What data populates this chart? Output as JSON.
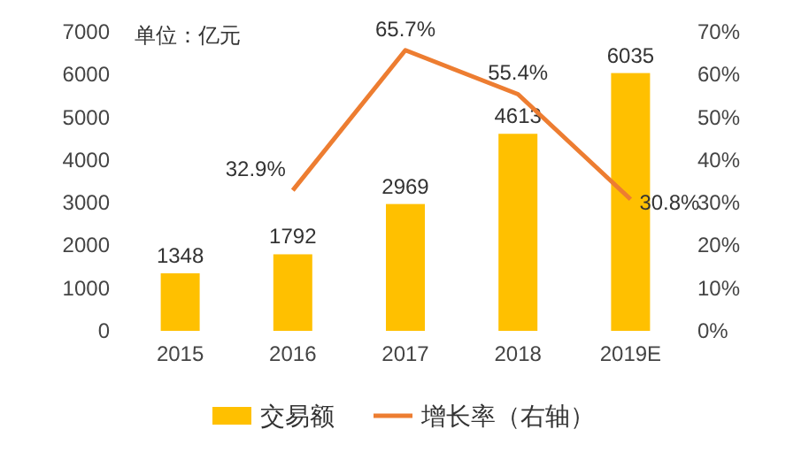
{
  "chart_data": {
    "type": "bar",
    "categories": [
      "2015",
      "2016",
      "2017",
      "2018",
      "2019E"
    ],
    "series": [
      {
        "name": "交易额",
        "color": "#ffc000",
        "values": [
          1348,
          1792,
          2969,
          4613,
          6035
        ],
        "value_labels": [
          "1348",
          "1792",
          "2969",
          "4613",
          "6035"
        ]
      },
      {
        "name": "增长率（右轴）",
        "type": "line",
        "axis": "y2",
        "color": "#ed7d31",
        "values": [
          null,
          32.9,
          65.7,
          55.4,
          30.8
        ],
        "value_labels": [
          null,
          "32.9%",
          "65.7%",
          "55.4%",
          "30.8%"
        ]
      }
    ],
    "ylim": [
      0,
      7000
    ],
    "yticks": [
      0,
      1000,
      2000,
      3000,
      4000,
      5000,
      6000,
      7000
    ],
    "y2lim": [
      0,
      70
    ],
    "y2ticks": [
      {
        "value": 0,
        "label": "0%"
      },
      {
        "value": 10,
        "label": "10%"
      },
      {
        "value": 20,
        "label": "20%"
      },
      {
        "value": 30,
        "label": "30%"
      },
      {
        "value": 40,
        "label": "40%"
      },
      {
        "value": 50,
        "label": "50%"
      },
      {
        "value": 60,
        "label": "60%"
      },
      {
        "value": 70,
        "label": "70%"
      }
    ],
    "legend": "bottom",
    "annotations": [
      "单位：亿元"
    ]
  }
}
